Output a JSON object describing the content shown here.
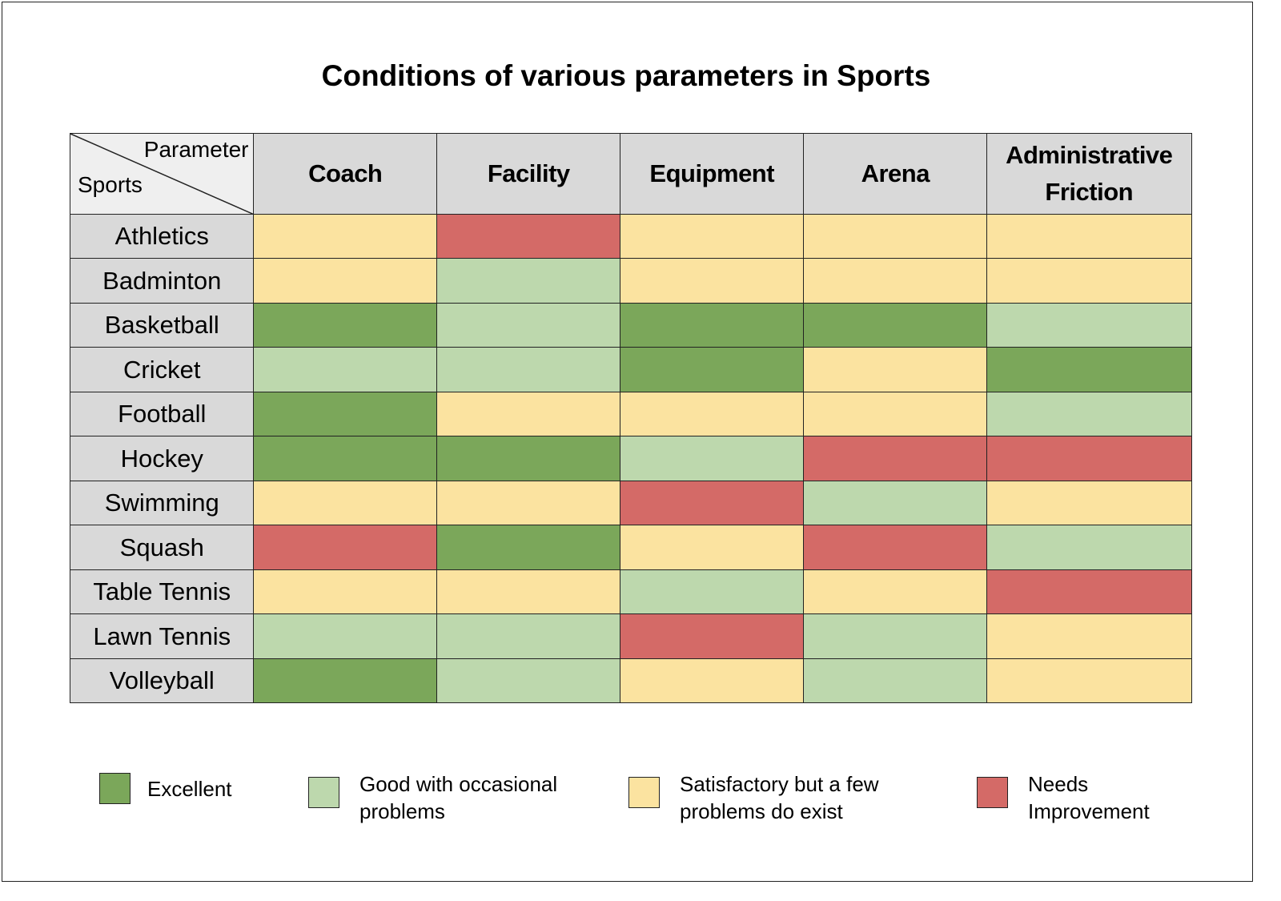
{
  "chart_data": {
    "type": "heatmap",
    "title": "Conditions of various parameters in Sports",
    "corner": {
      "column_axis": "Parameter",
      "row_axis": "Sports"
    },
    "columns": [
      "Coach",
      "Facility",
      "Equipment",
      "Arena",
      "Administrative Friction"
    ],
    "rows": [
      "Athletics",
      "Badminton",
      "Basketball",
      "Cricket",
      "Football",
      "Hockey",
      "Swimming",
      "Squash",
      "Table Tennis",
      "Lawn Tennis",
      "Volleyball"
    ],
    "categories": {
      "E": {
        "label": "Excellent",
        "color": "#7ba75a"
      },
      "G": {
        "label": "Good with occasional problems",
        "color": "#bdd8ad"
      },
      "S": {
        "label": "Satisfactory but a few problems do exist",
        "color": "#fbe3a0"
      },
      "N": {
        "label": "Needs Improvement",
        "color": "#d46a67"
      }
    },
    "values": [
      [
        "S",
        "N",
        "S",
        "S",
        "S"
      ],
      [
        "S",
        "G",
        "S",
        "S",
        "S"
      ],
      [
        "E",
        "G",
        "E",
        "E",
        "G"
      ],
      [
        "G",
        "G",
        "E",
        "S",
        "E"
      ],
      [
        "E",
        "S",
        "S",
        "S",
        "G"
      ],
      [
        "E",
        "E",
        "G",
        "N",
        "N"
      ],
      [
        "S",
        "S",
        "N",
        "G",
        "S"
      ],
      [
        "N",
        "E",
        "S",
        "N",
        "G"
      ],
      [
        "S",
        "S",
        "G",
        "S",
        "N"
      ],
      [
        "G",
        "G",
        "N",
        "G",
        "S"
      ],
      [
        "E",
        "G",
        "S",
        "G",
        "S"
      ]
    ],
    "legend": {
      "position": "bottom",
      "items": [
        {
          "key": "E",
          "label": "Excellent"
        },
        {
          "key": "G",
          "label": "Good with occasional problems"
        },
        {
          "key": "S",
          "label": "Satisfactory but a few problems do exist"
        },
        {
          "key": "N",
          "label": "Needs Improvement"
        }
      ]
    },
    "header_color": "#d9d9d9",
    "corner_color": "#efefef"
  }
}
